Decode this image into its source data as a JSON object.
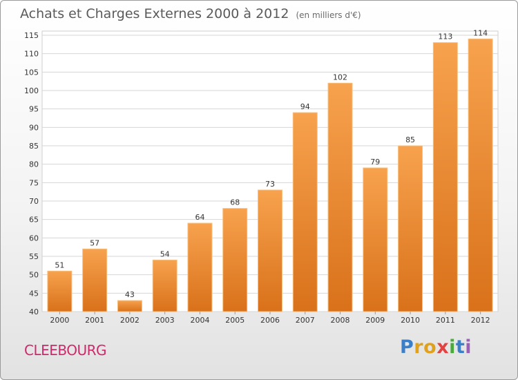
{
  "header": {
    "title": "Achats et Charges Externes 2000 à 2012",
    "subtitle": "(en milliers d'€)"
  },
  "footer": {
    "commune": "CLEEBOURG",
    "logo": [
      "P",
      "r",
      "o",
      "x",
      "i",
      "t",
      "i"
    ]
  },
  "colors": {
    "bar_top": "#f7a24e",
    "bar_bottom": "#d9711a",
    "bar_edge": "#f9c07f",
    "grid": "#d6d6d6",
    "axis_text": "#333333",
    "commune": "#cc2a6a"
  },
  "chart_data": {
    "type": "bar",
    "categories": [
      "2000",
      "2001",
      "2002",
      "2003",
      "2004",
      "2005",
      "2006",
      "2007",
      "2008",
      "2009",
      "2010",
      "2011",
      "2012"
    ],
    "values": [
      51,
      57,
      43,
      54,
      64,
      68,
      73,
      94,
      102,
      79,
      85,
      113,
      114
    ],
    "data_labels": [
      "51",
      "57",
      "43",
      "54",
      "64",
      "68",
      "73",
      "94",
      "102",
      "79",
      "85",
      "113",
      "114"
    ],
    "title": "Achats et Charges Externes 2000 à 2012",
    "xlabel": "",
    "ylabel": "",
    "ylim": [
      40,
      115
    ],
    "yticks": [
      "40",
      "45",
      "50",
      "55",
      "60",
      "65",
      "70",
      "75",
      "80",
      "85",
      "90",
      "95",
      "100",
      "105",
      "110",
      "115"
    ],
    "grid": true,
    "legend": "none"
  }
}
